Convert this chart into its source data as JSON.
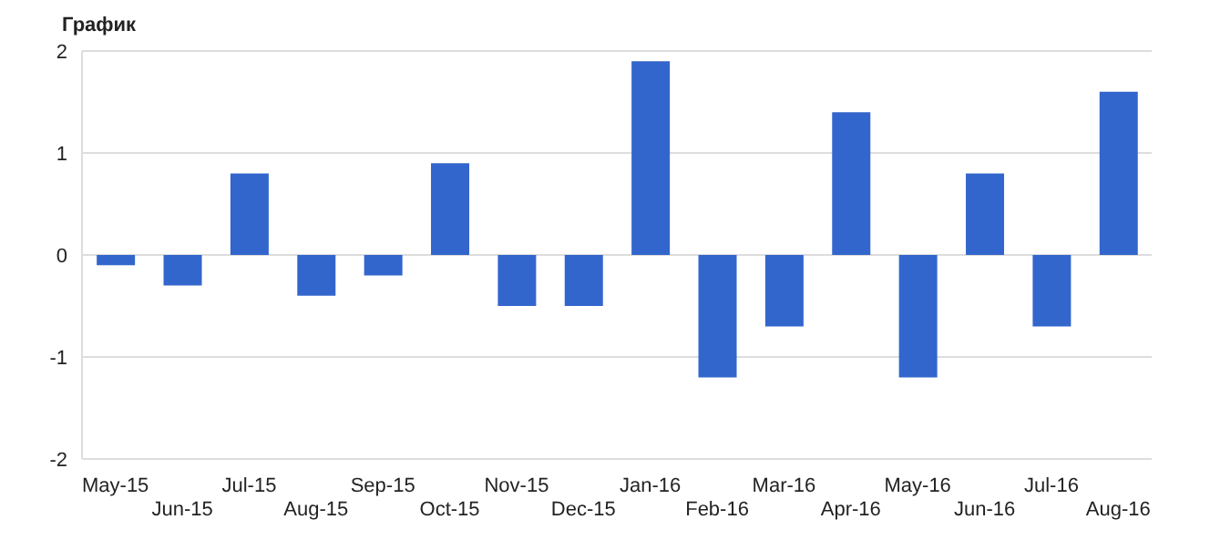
{
  "chart_data": {
    "type": "bar",
    "title": "График",
    "categories": [
      "May-15",
      "Jun-15",
      "Jul-15",
      "Aug-15",
      "Sep-15",
      "Oct-15",
      "Nov-15",
      "Dec-15",
      "Jan-16",
      "Feb-16",
      "Mar-16",
      "Apr-16",
      "May-16",
      "Jun-16",
      "Jul-16",
      "Aug-16"
    ],
    "values": [
      -0.1,
      -0.3,
      0.8,
      -0.4,
      -0.2,
      0.9,
      -0.5,
      -0.5,
      1.9,
      -1.2,
      -0.7,
      1.4,
      -1.2,
      0.8,
      -0.7,
      1.6
    ],
    "color": "#3366cc",
    "ylim": [
      -2,
      2
    ],
    "yticks": [
      -2,
      -1,
      0,
      1,
      2
    ],
    "grid": "y"
  }
}
